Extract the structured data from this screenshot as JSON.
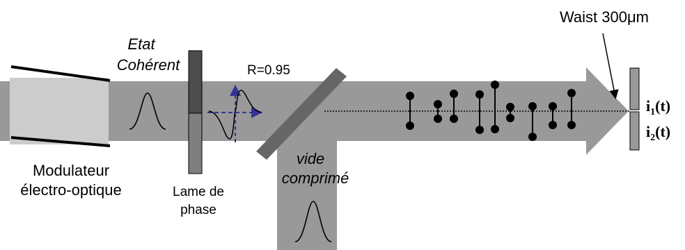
{
  "labels": {
    "modulator_line1": "Modulateur",
    "modulator_line2": "électro-optique",
    "coherent_line1": "Etat",
    "coherent_line2": "Cohérent",
    "phase_plate_line1": "Lame de",
    "phase_plate_line2": "phase",
    "reflectivity": "R=0.95",
    "squeezed_line1": "vide",
    "squeezed_line2": "comprimé",
    "waist": "Waist 300μm",
    "detector1_main": "i",
    "detector1_sub": "1",
    "detector1_arg": "(t)",
    "detector2_main": "i",
    "detector2_sub": "2",
    "detector2_arg": "(t)"
  },
  "colors": {
    "beam": "#999999",
    "modulator": "#cccccc",
    "mirror": "#666666",
    "plate_dark": "#4d4d4d",
    "plate_light": "#7f7f7f",
    "field_arrow": "#333399"
  }
}
